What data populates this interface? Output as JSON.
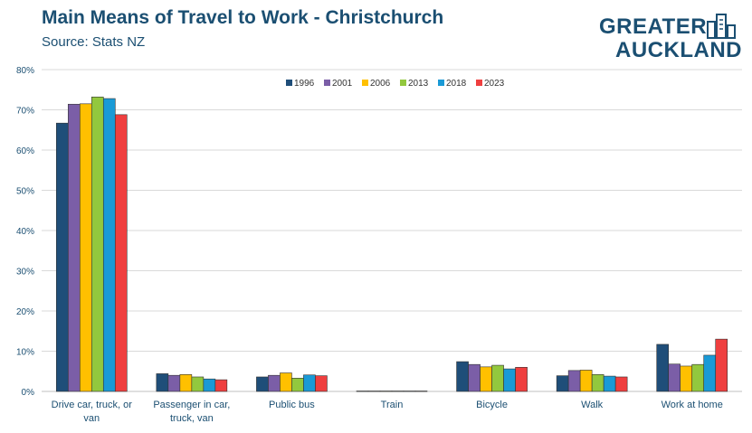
{
  "header": {
    "title": "Main Means of Travel to Work - Christchurch",
    "subtitle": "Source: Stats NZ"
  },
  "logo": {
    "line1": "GREATER",
    "line2": "AUCKLAND"
  },
  "colors": {
    "title": "#1b4f72",
    "series": [
      "#1f4e79",
      "#7b5ea7",
      "#ffc000",
      "#92c83e",
      "#1a9ad6",
      "#ef3f3f"
    ],
    "grid": "#d9d9d9",
    "axis_text": "#1b4f72"
  },
  "chart_data": {
    "type": "bar",
    "title": "Main Means of Travel to Work - Christchurch",
    "subtitle": "Source: Stats NZ",
    "xlabel": "",
    "ylabel": "",
    "ylim": [
      0,
      80
    ],
    "yticks": [
      "0%",
      "10%",
      "20%",
      "30%",
      "40%",
      "50%",
      "60%",
      "70%",
      "80%"
    ],
    "grid": true,
    "legend_position": "top",
    "categories": [
      "Drive car, truck, or van",
      "Passenger in car, truck, van",
      "Public bus",
      "Train",
      "Bicycle",
      "Walk",
      "Work at home"
    ],
    "category_lines": [
      [
        "Drive car, truck, or",
        "van"
      ],
      [
        "Passenger in car,",
        "truck, van"
      ],
      [
        "Public bus"
      ],
      [
        "Train"
      ],
      [
        "Bicycle"
      ],
      [
        "Walk"
      ],
      [
        "Work at home"
      ]
    ],
    "series": [
      {
        "name": "1996",
        "values": [
          66.7,
          4.4,
          3.6,
          0.1,
          7.4,
          3.9,
          11.7
        ]
      },
      {
        "name": "2001",
        "values": [
          71.4,
          4.0,
          4.0,
          0.1,
          6.7,
          5.2,
          6.8
        ]
      },
      {
        "name": "2006",
        "values": [
          71.5,
          4.2,
          4.6,
          0.1,
          6.1,
          5.3,
          6.3
        ]
      },
      {
        "name": "2013",
        "values": [
          73.2,
          3.6,
          3.3,
          0.1,
          6.5,
          4.2,
          6.7
        ]
      },
      {
        "name": "2018",
        "values": [
          72.8,
          3.1,
          4.1,
          0.1,
          5.6,
          3.8,
          9.0
        ]
      },
      {
        "name": "2023",
        "values": [
          68.8,
          2.9,
          3.9,
          0.1,
          6.0,
          3.6,
          13.0
        ]
      }
    ]
  }
}
